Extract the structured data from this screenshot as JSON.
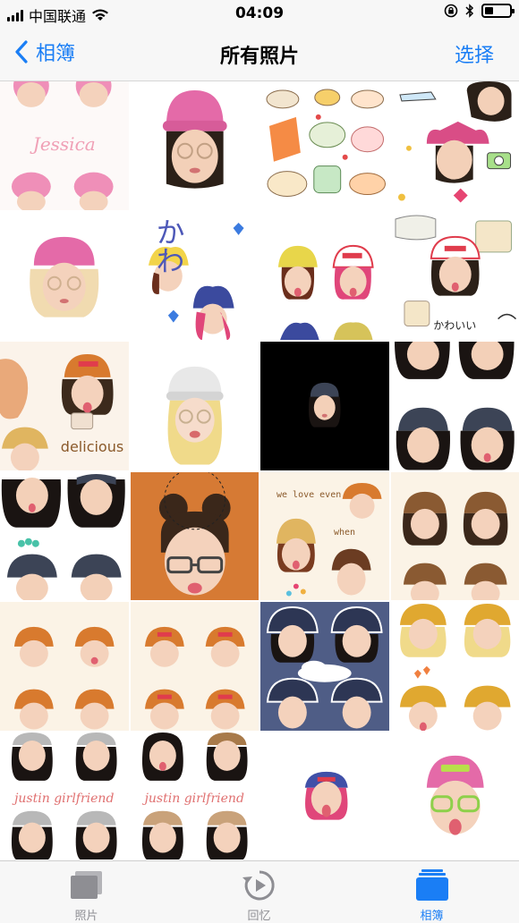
{
  "status_bar": {
    "carrier": "中国联通",
    "time": "04:09",
    "battery_level": 0.35,
    "icons": [
      "signal-icon",
      "wifi-icon",
      "rotation-lock-icon",
      "bluetooth-icon",
      "battery-icon"
    ]
  },
  "nav": {
    "back_label": "相簿",
    "title": "所有照片",
    "select_label": "选择"
  },
  "photos": {
    "captions": {
      "jessica": "Jessica",
      "delicious": "delicious",
      "we_love_even": "we love even",
      "when": "when",
      "justin_gf_1": "justin girlfriend",
      "justin_gf_2": "justin girlfriend",
      "kawaii": "かわいい",
      "kawaii_vertical": "かわ"
    }
  },
  "tab_bar": {
    "tabs": [
      {
        "label": "照片",
        "icon": "photos-icon",
        "active": false
      },
      {
        "label": "回忆",
        "icon": "memories-icon",
        "active": false
      },
      {
        "label": "相簿",
        "icon": "albums-icon",
        "active": true
      }
    ]
  },
  "colors": {
    "accent": "#1a7ef5",
    "inactive_tab": "#8e8e93",
    "bar_background": "#f7f7f7"
  }
}
